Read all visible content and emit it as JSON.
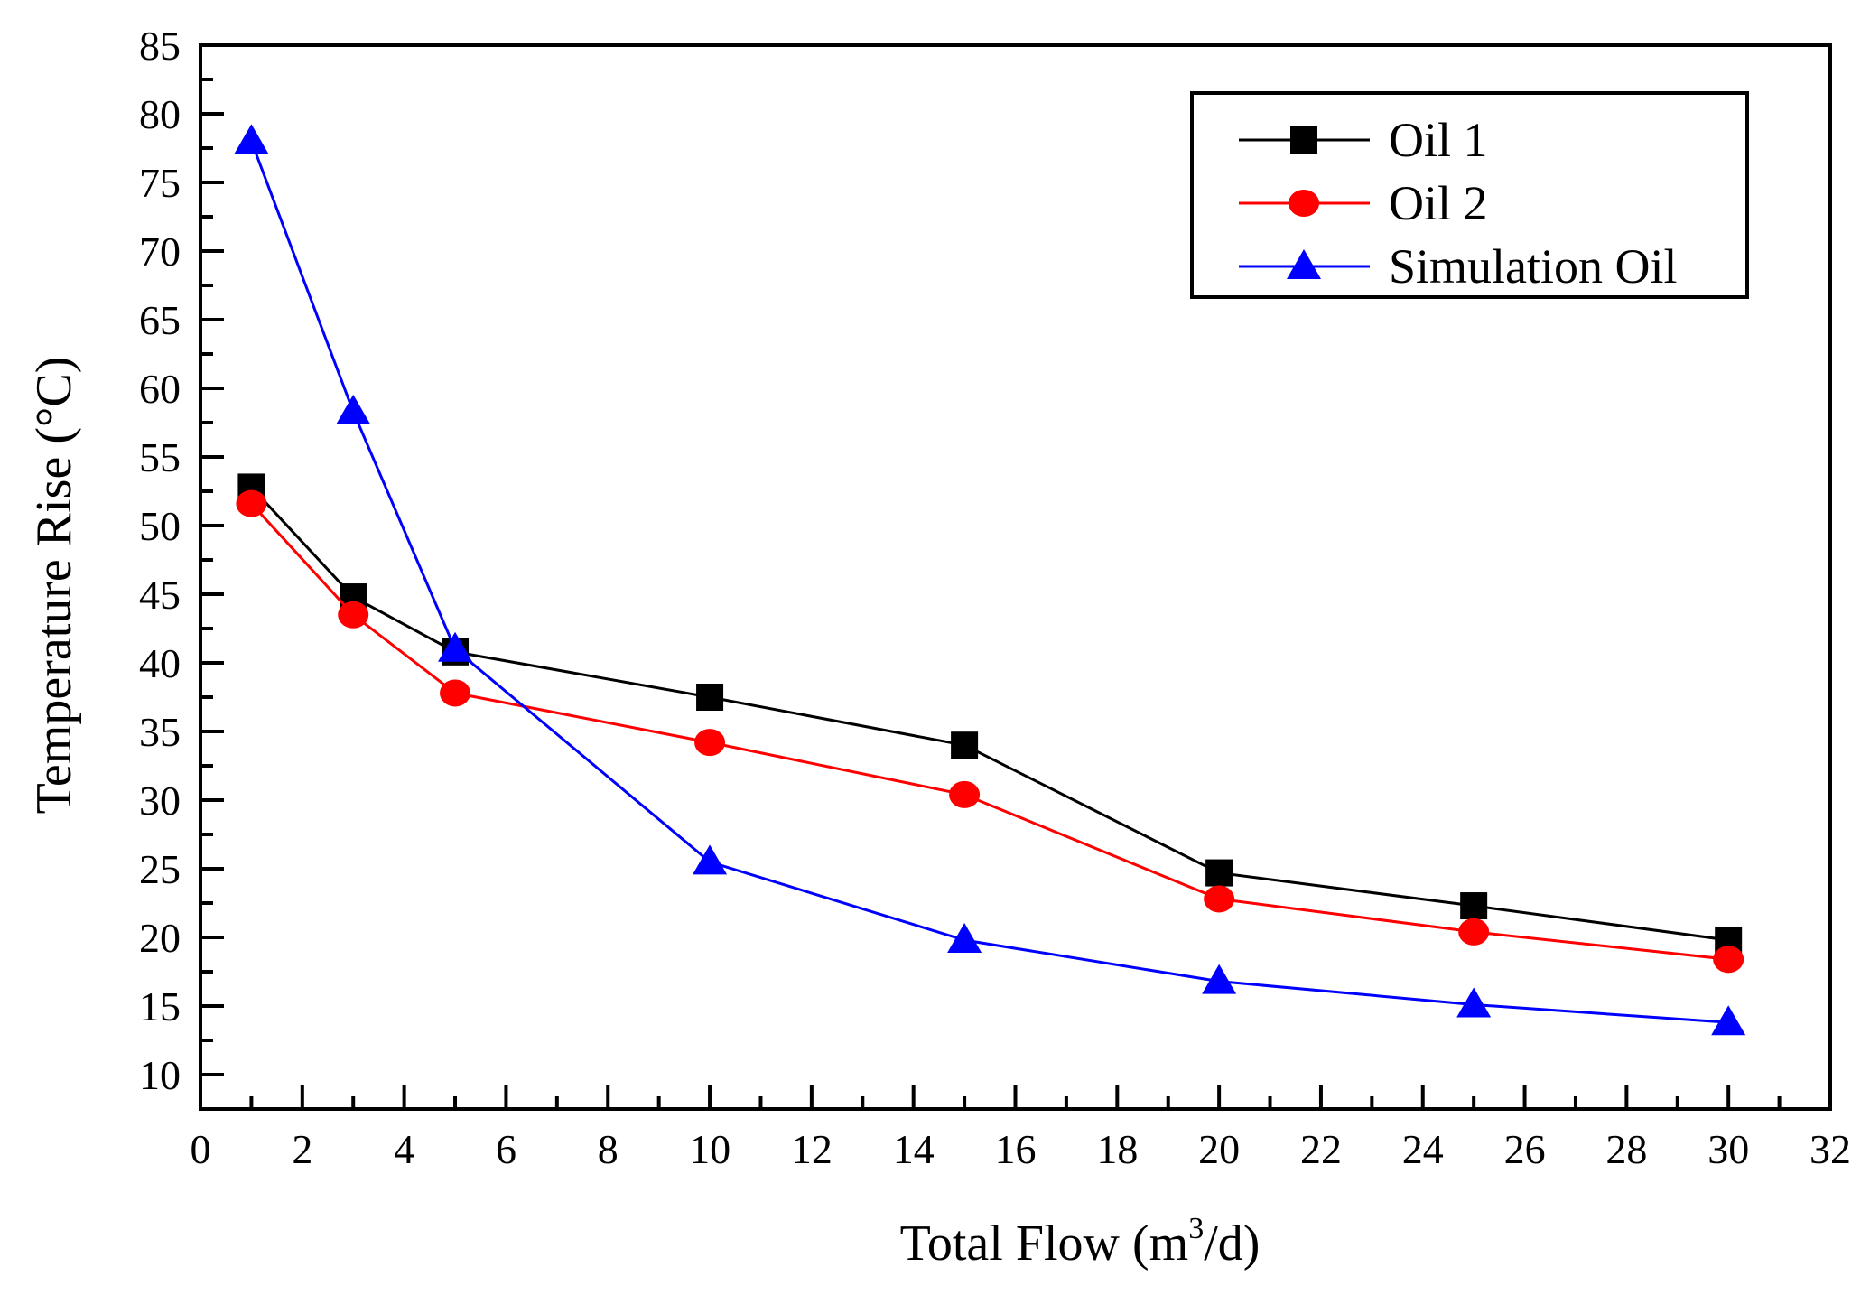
{
  "chart_data": {
    "type": "line",
    "xlabel": "Total Flow (m",
    "xlabel_sup": "3",
    "xlabel_tail": "/d)",
    "ylabel": "Temperature Rise (°C)",
    "xlim": [
      0,
      32
    ],
    "ylim": [
      7.5,
      85
    ],
    "x_ticks": [
      0,
      2,
      4,
      6,
      8,
      10,
      12,
      14,
      16,
      18,
      20,
      22,
      24,
      26,
      28,
      30,
      32
    ],
    "y_ticks": [
      10,
      15,
      20,
      25,
      30,
      35,
      40,
      45,
      50,
      55,
      60,
      65,
      70,
      75,
      80,
      85
    ],
    "x": [
      1,
      3,
      5,
      10,
      15,
      20,
      25,
      30
    ],
    "grid": false,
    "legend_position": "top-right",
    "series": [
      {
        "name": "Oil 1",
        "color": "#000000",
        "marker": "square",
        "values": [
          52.8,
          44.8,
          40.8,
          37.5,
          34.0,
          24.7,
          22.3,
          19.8
        ]
      },
      {
        "name": "Oil 2",
        "color": "#ff0000",
        "marker": "circle",
        "values": [
          51.6,
          43.5,
          37.8,
          34.2,
          30.4,
          22.8,
          20.4,
          18.4
        ]
      },
      {
        "name": "Simulation Oil",
        "color": "#0000ff",
        "marker": "triangle",
        "values": [
          78.0,
          58.3,
          41.0,
          25.5,
          19.8,
          16.8,
          15.1,
          13.8
        ]
      }
    ]
  }
}
